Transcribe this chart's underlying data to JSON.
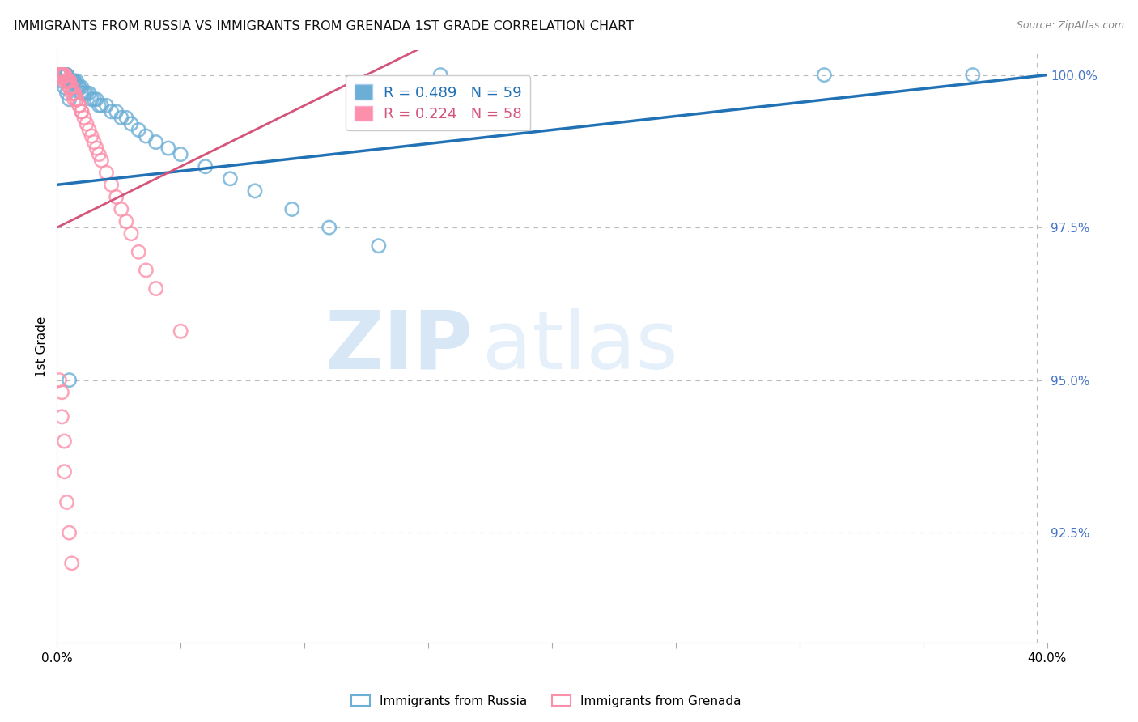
{
  "title": "IMMIGRANTS FROM RUSSIA VS IMMIGRANTS FROM GRENADA 1ST GRADE CORRELATION CHART",
  "source": "Source: ZipAtlas.com",
  "ylabel": "1st Grade",
  "legend_blue": "Immigrants from Russia",
  "legend_pink": "Immigrants from Grenada",
  "R_blue": 0.489,
  "N_blue": 59,
  "R_pink": 0.224,
  "N_pink": 58,
  "blue_color": "#6baed6",
  "pink_color": "#fc8faa",
  "blue_line_color": "#2171b5",
  "pink_line_color": "#d4547a",
  "watermark_zip": "ZIP",
  "watermark_atlas": "atlas",
  "russia_x": [
    0.001,
    0.001,
    0.002,
    0.002,
    0.003,
    0.003,
    0.003,
    0.004,
    0.004,
    0.004,
    0.005,
    0.005,
    0.005,
    0.006,
    0.006,
    0.006,
    0.007,
    0.007,
    0.007,
    0.008,
    0.008,
    0.009,
    0.009,
    0.01,
    0.01,
    0.011,
    0.012,
    0.013,
    0.014,
    0.015,
    0.016,
    0.017,
    0.018,
    0.02,
    0.022,
    0.024,
    0.026,
    0.028,
    0.03,
    0.033,
    0.036,
    0.04,
    0.045,
    0.05,
    0.06,
    0.07,
    0.08,
    0.095,
    0.11,
    0.13,
    0.001,
    0.002,
    0.003,
    0.004,
    0.005,
    0.155,
    0.31,
    0.37,
    0.005
  ],
  "russia_y": [
    1.0,
    1.0,
    1.0,
    1.0,
    1.0,
    1.0,
    1.0,
    1.0,
    1.0,
    1.0,
    0.999,
    0.999,
    0.999,
    0.999,
    0.999,
    0.999,
    0.999,
    0.999,
    0.999,
    0.999,
    0.998,
    0.998,
    0.998,
    0.998,
    0.997,
    0.997,
    0.997,
    0.997,
    0.996,
    0.996,
    0.996,
    0.995,
    0.995,
    0.995,
    0.994,
    0.994,
    0.993,
    0.993,
    0.992,
    0.991,
    0.99,
    0.989,
    0.988,
    0.987,
    0.985,
    0.983,
    0.981,
    0.978,
    0.975,
    0.972,
    1.0,
    0.999,
    0.998,
    0.997,
    0.996,
    1.0,
    1.0,
    1.0,
    0.95
  ],
  "grenada_x": [
    0.001,
    0.001,
    0.001,
    0.002,
    0.002,
    0.002,
    0.002,
    0.003,
    0.003,
    0.003,
    0.003,
    0.003,
    0.004,
    0.004,
    0.004,
    0.004,
    0.005,
    0.005,
    0.005,
    0.005,
    0.006,
    0.006,
    0.006,
    0.007,
    0.007,
    0.007,
    0.008,
    0.008,
    0.009,
    0.009,
    0.01,
    0.01,
    0.011,
    0.012,
    0.013,
    0.014,
    0.015,
    0.016,
    0.017,
    0.018,
    0.02,
    0.022,
    0.024,
    0.026,
    0.028,
    0.03,
    0.033,
    0.036,
    0.04,
    0.05,
    0.001,
    0.002,
    0.002,
    0.003,
    0.003,
    0.004,
    0.005,
    0.006
  ],
  "grenada_y": [
    1.0,
    1.0,
    1.0,
    1.0,
    1.0,
    1.0,
    1.0,
    1.0,
    1.0,
    1.0,
    1.0,
    0.999,
    0.999,
    0.999,
    0.999,
    0.999,
    0.999,
    0.999,
    0.998,
    0.998,
    0.998,
    0.998,
    0.997,
    0.997,
    0.997,
    0.996,
    0.996,
    0.996,
    0.995,
    0.995,
    0.994,
    0.994,
    0.993,
    0.992,
    0.991,
    0.99,
    0.989,
    0.988,
    0.987,
    0.986,
    0.984,
    0.982,
    0.98,
    0.978,
    0.976,
    0.974,
    0.971,
    0.968,
    0.965,
    0.958,
    0.95,
    0.948,
    0.944,
    0.94,
    0.935,
    0.93,
    0.925,
    0.92
  ],
  "xlim": [
    0.0,
    0.4
  ],
  "ylim": [
    0.907,
    1.004
  ],
  "yticks": [
    1.0,
    0.975,
    0.95,
    0.925
  ],
  "xtick_labels": [
    "0.0%",
    "",
    "",
    "",
    "",
    "",
    "",
    "",
    "40.0%"
  ],
  "xticks": [
    0.0,
    0.05,
    0.1,
    0.15,
    0.2,
    0.25,
    0.3,
    0.35,
    0.4
  ]
}
